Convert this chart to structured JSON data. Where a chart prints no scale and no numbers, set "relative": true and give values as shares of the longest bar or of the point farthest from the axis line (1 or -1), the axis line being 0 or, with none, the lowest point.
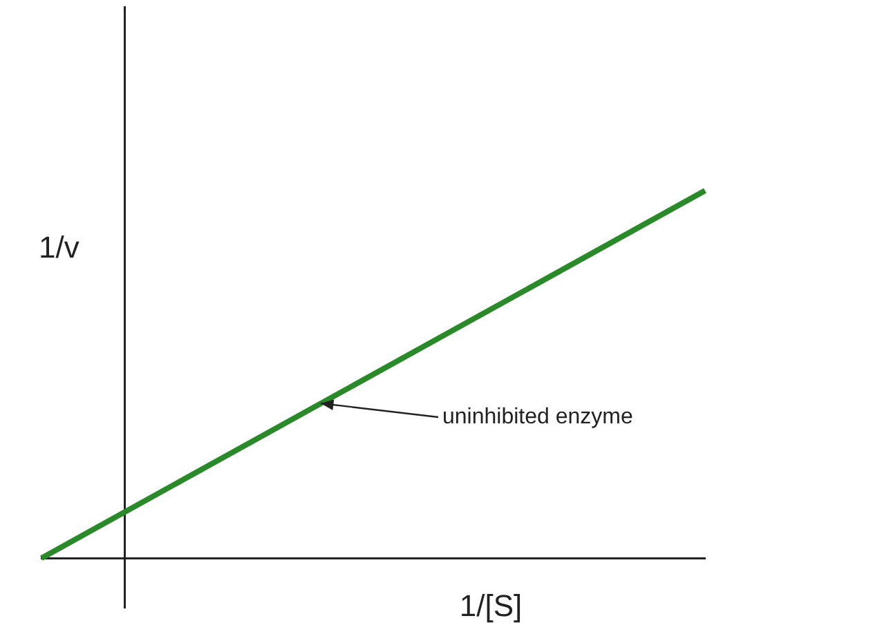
{
  "chart_data": {
    "type": "line",
    "relative": true,
    "xlabel": "1/[S]",
    "ylabel": "1/v",
    "categories": [
      null,
      null,
      null,
      null,
      null,
      null,
      null,
      null,
      null
    ],
    "series": [
      {
        "color": "#2a8a2a",
        "values": [
          0,
          null,
          null,
          null,
          null,
          null,
          null,
          null,
          1
        ]
      }
    ],
    "annotations": [
      "uninhibited enzyme"
    ],
    "legend": false,
    "marker": "none",
    "line_style": "solid"
  }
}
